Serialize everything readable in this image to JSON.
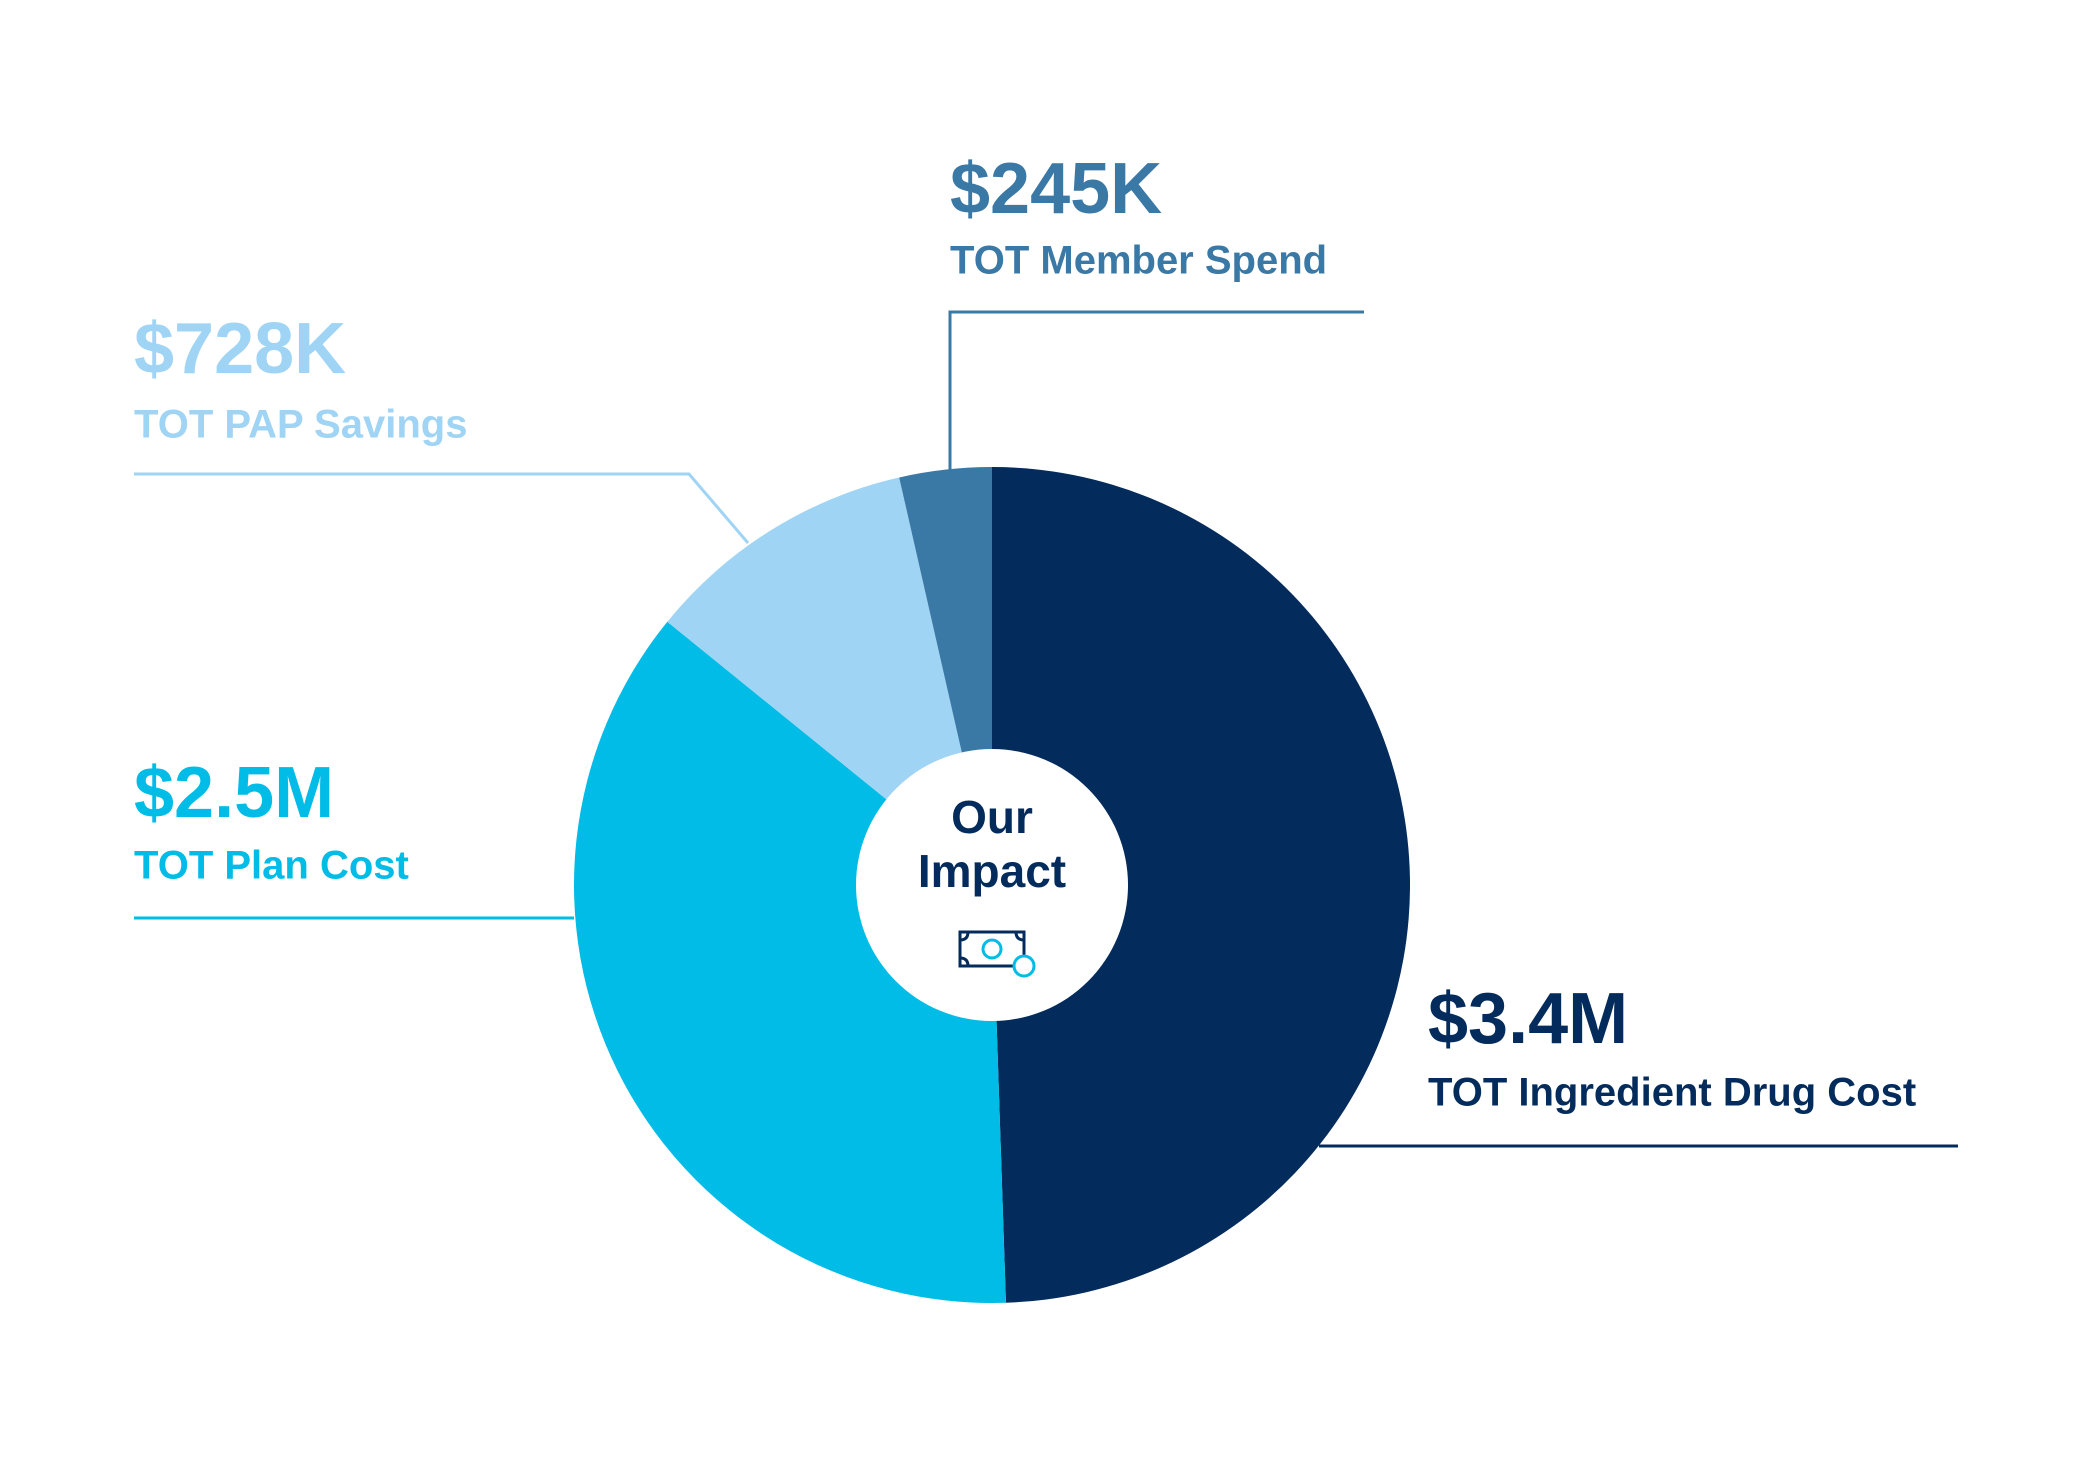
{
  "chart_data": {
    "type": "donut",
    "center_label": "Our Impact",
    "series": [
      {
        "name": "TOT Ingredient Drug Cost",
        "color": "#032b5c",
        "values": [
          3400000
        ],
        "value_labels": [
          "$3.4M"
        ]
      },
      {
        "name": "TOT Plan Cost",
        "color": "#00bce6",
        "values": [
          2500000
        ],
        "value_labels": [
          "$2.5M"
        ]
      },
      {
        "name": "TOT PAP Savings",
        "color": "#a0d4f4",
        "values": [
          728000
        ],
        "value_labels": [
          "$728K"
        ]
      },
      {
        "name": "TOT Member Spend",
        "color": "#3a78a6",
        "values": [
          245000
        ],
        "value_labels": [
          "$245K"
        ]
      }
    ]
  }
}
